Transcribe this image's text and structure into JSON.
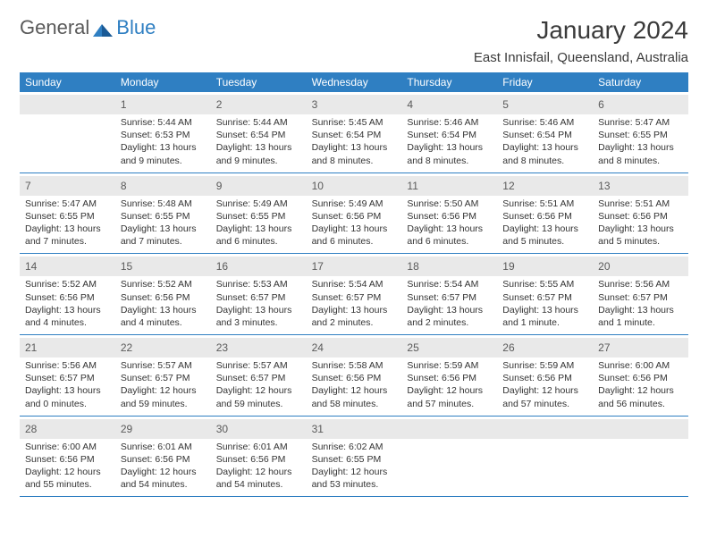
{
  "logo": {
    "text1": "General",
    "text2": "Blue"
  },
  "title": "January 2024",
  "location": "East Innisfail, Queensland, Australia",
  "colors": {
    "header_bg": "#2f7fc2",
    "header_text": "#ffffff",
    "daynum_bg": "#e9e9e9",
    "border": "#2f7fc2",
    "body_text": "#333333",
    "logo_gray": "#5a5a5a",
    "logo_blue": "#2f7fc2"
  },
  "day_names": [
    "Sunday",
    "Monday",
    "Tuesday",
    "Wednesday",
    "Thursday",
    "Friday",
    "Saturday"
  ],
  "grid": {
    "columns": 7,
    "rows": 5,
    "start_offset": 1,
    "days_in_month": 31
  },
  "days": {
    "1": {
      "sunrise": "5:44 AM",
      "sunset": "6:53 PM",
      "daylight": "13 hours and 9 minutes."
    },
    "2": {
      "sunrise": "5:44 AM",
      "sunset": "6:54 PM",
      "daylight": "13 hours and 9 minutes."
    },
    "3": {
      "sunrise": "5:45 AM",
      "sunset": "6:54 PM",
      "daylight": "13 hours and 8 minutes."
    },
    "4": {
      "sunrise": "5:46 AM",
      "sunset": "6:54 PM",
      "daylight": "13 hours and 8 minutes."
    },
    "5": {
      "sunrise": "5:46 AM",
      "sunset": "6:54 PM",
      "daylight": "13 hours and 8 minutes."
    },
    "6": {
      "sunrise": "5:47 AM",
      "sunset": "6:55 PM",
      "daylight": "13 hours and 8 minutes."
    },
    "7": {
      "sunrise": "5:47 AM",
      "sunset": "6:55 PM",
      "daylight": "13 hours and 7 minutes."
    },
    "8": {
      "sunrise": "5:48 AM",
      "sunset": "6:55 PM",
      "daylight": "13 hours and 7 minutes."
    },
    "9": {
      "sunrise": "5:49 AM",
      "sunset": "6:55 PM",
      "daylight": "13 hours and 6 minutes."
    },
    "10": {
      "sunrise": "5:49 AM",
      "sunset": "6:56 PM",
      "daylight": "13 hours and 6 minutes."
    },
    "11": {
      "sunrise": "5:50 AM",
      "sunset": "6:56 PM",
      "daylight": "13 hours and 6 minutes."
    },
    "12": {
      "sunrise": "5:51 AM",
      "sunset": "6:56 PM",
      "daylight": "13 hours and 5 minutes."
    },
    "13": {
      "sunrise": "5:51 AM",
      "sunset": "6:56 PM",
      "daylight": "13 hours and 5 minutes."
    },
    "14": {
      "sunrise": "5:52 AM",
      "sunset": "6:56 PM",
      "daylight": "13 hours and 4 minutes."
    },
    "15": {
      "sunrise": "5:52 AM",
      "sunset": "6:56 PM",
      "daylight": "13 hours and 4 minutes."
    },
    "16": {
      "sunrise": "5:53 AM",
      "sunset": "6:57 PM",
      "daylight": "13 hours and 3 minutes."
    },
    "17": {
      "sunrise": "5:54 AM",
      "sunset": "6:57 PM",
      "daylight": "13 hours and 2 minutes."
    },
    "18": {
      "sunrise": "5:54 AM",
      "sunset": "6:57 PM",
      "daylight": "13 hours and 2 minutes."
    },
    "19": {
      "sunrise": "5:55 AM",
      "sunset": "6:57 PM",
      "daylight": "13 hours and 1 minute."
    },
    "20": {
      "sunrise": "5:56 AM",
      "sunset": "6:57 PM",
      "daylight": "13 hours and 1 minute."
    },
    "21": {
      "sunrise": "5:56 AM",
      "sunset": "6:57 PM",
      "daylight": "13 hours and 0 minutes."
    },
    "22": {
      "sunrise": "5:57 AM",
      "sunset": "6:57 PM",
      "daylight": "12 hours and 59 minutes."
    },
    "23": {
      "sunrise": "5:57 AM",
      "sunset": "6:57 PM",
      "daylight": "12 hours and 59 minutes."
    },
    "24": {
      "sunrise": "5:58 AM",
      "sunset": "6:56 PM",
      "daylight": "12 hours and 58 minutes."
    },
    "25": {
      "sunrise": "5:59 AM",
      "sunset": "6:56 PM",
      "daylight": "12 hours and 57 minutes."
    },
    "26": {
      "sunrise": "5:59 AM",
      "sunset": "6:56 PM",
      "daylight": "12 hours and 57 minutes."
    },
    "27": {
      "sunrise": "6:00 AM",
      "sunset": "6:56 PM",
      "daylight": "12 hours and 56 minutes."
    },
    "28": {
      "sunrise": "6:00 AM",
      "sunset": "6:56 PM",
      "daylight": "12 hours and 55 minutes."
    },
    "29": {
      "sunrise": "6:01 AM",
      "sunset": "6:56 PM",
      "daylight": "12 hours and 54 minutes."
    },
    "30": {
      "sunrise": "6:01 AM",
      "sunset": "6:56 PM",
      "daylight": "12 hours and 54 minutes."
    },
    "31": {
      "sunrise": "6:02 AM",
      "sunset": "6:55 PM",
      "daylight": "12 hours and 53 minutes."
    }
  },
  "labels": {
    "sunrise_prefix": "Sunrise: ",
    "sunset_prefix": "Sunset: ",
    "daylight_prefix": "Daylight: "
  }
}
